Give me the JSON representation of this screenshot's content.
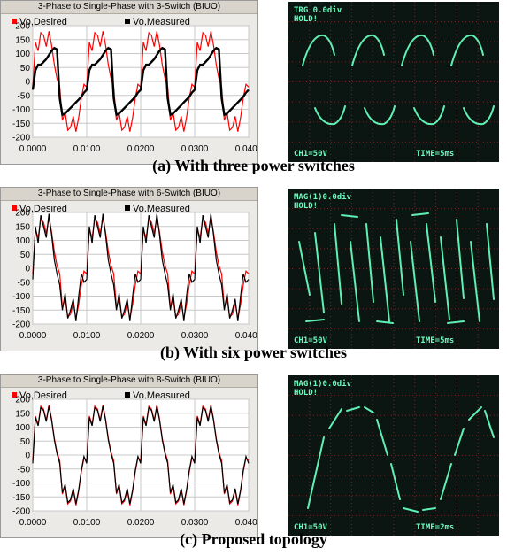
{
  "panels": [
    {
      "sim_title": "3-Phase to Single-Phase with 3-Switch (BIUO)",
      "legend": [
        "Vo,Desired",
        "Vo,Measured"
      ],
      "scope_top_text": "TRG 0.0div",
      "scope_hold": "HOLD!",
      "scope_ch": "CH1=50V",
      "scope_time": "TIME=5ms",
      "caption": "(a) With three power switches"
    },
    {
      "sim_title": "3-Phase to Single-Phase with 6-Switch (BIUO)",
      "legend": [
        "Vo,Desired",
        "Vo,Measured"
      ],
      "scope_top_text": "MAG(1)0.0div",
      "scope_hold": "HOLD!",
      "scope_ch": "CH1=50V",
      "scope_time": "TIME=5ms",
      "caption": "(b) With six power switches"
    },
    {
      "sim_title": "3-Phase to Single-Phase with 8-Switch (BIUO)",
      "legend": [
        "Vo,Desired",
        "Vo,Measured"
      ],
      "scope_top_text": "MAG(1)0.0div",
      "scope_hold": "HOLD!",
      "scope_ch": "CH1=50V",
      "scope_time": "TIME=2ms",
      "caption": "(c) Proposed topology"
    }
  ],
  "colors": {
    "desired": "#ff0000",
    "measured": "#000000",
    "scope_trace": "#5ff0b4",
    "scope_text": "#6dfabf",
    "scope_grid": "#6a2a2a"
  },
  "chart_data": [
    {
      "type": "line",
      "title": "3-Phase to Single-Phase with 3-Switch (BIUO)",
      "xlim": [
        0,
        0.04
      ],
      "ylim": [
        -200,
        200
      ],
      "xticks": [
        "0.0000",
        "0.0100",
        "0.0200",
        "0.0300",
        "0.0400"
      ],
      "yticks": [
        200,
        150,
        100,
        50,
        0,
        -50,
        -100,
        -150,
        -200
      ],
      "period": 0.01,
      "series": [
        {
          "name": "Vo,Desired",
          "color": "#ff0000",
          "x": [
            0,
            0.0005,
            0.001,
            0.0015,
            0.002,
            0.0025,
            0.003,
            0.0035,
            0.004,
            0.0045,
            0.005,
            0.0055,
            0.006,
            0.0065,
            0.007,
            0.0075,
            0.008,
            0.0085,
            0.009,
            0.0095
          ],
          "y": [
            -20,
            140,
            110,
            175,
            165,
            125,
            180,
            130,
            60,
            10,
            -20,
            -140,
            -110,
            -175,
            -165,
            -125,
            -180,
            -130,
            -60,
            -10
          ]
        },
        {
          "name": "Vo,Measured",
          "color": "#000000",
          "x": [
            0,
            0.0005,
            0.001,
            0.0015,
            0.002,
            0.0025,
            0.003,
            0.0035,
            0.004,
            0.0045,
            0.005,
            0.0055,
            0.006,
            0.0065,
            0.007,
            0.0075,
            0.008,
            0.0085,
            0.009,
            0.0095
          ],
          "y": [
            -30,
            40,
            60,
            60,
            70,
            80,
            95,
            110,
            120,
            115,
            -60,
            -120,
            -115,
            -105,
            -95,
            -85,
            -75,
            -65,
            -55,
            -40
          ]
        }
      ]
    },
    {
      "type": "line",
      "title": "3-Phase to Single-Phase with 6-Switch (BIUO)",
      "xlim": [
        0,
        0.04
      ],
      "ylim": [
        -200,
        200
      ],
      "xticks": [
        "0.0000",
        "0.0100",
        "0.0200",
        "0.0300",
        "0.0400"
      ],
      "yticks": [
        200,
        150,
        100,
        50,
        0,
        -50,
        -100,
        -150,
        -200
      ],
      "period": 0.01,
      "series": [
        {
          "name": "Vo,Desired",
          "color": "#ff0000",
          "x": [
            0,
            0.0005,
            0.001,
            0.0015,
            0.002,
            0.0025,
            0.003,
            0.0035,
            0.004,
            0.0045,
            0.005,
            0.0055,
            0.006,
            0.0065,
            0.007,
            0.0075,
            0.008,
            0.0085,
            0.009,
            0.0095
          ],
          "y": [
            -20,
            140,
            110,
            175,
            165,
            125,
            180,
            130,
            60,
            10,
            -20,
            -140,
            -110,
            -175,
            -165,
            -125,
            -180,
            -130,
            -60,
            -10
          ]
        },
        {
          "name": "Vo,Measured",
          "color": "#000000",
          "x": [
            0,
            0.0005,
            0.001,
            0.0015,
            0.002,
            0.0025,
            0.003,
            0.0035,
            0.004,
            0.0045,
            0.005,
            0.0055,
            0.006,
            0.0065,
            0.007,
            0.0075,
            0.008,
            0.0085,
            0.009,
            0.0095
          ],
          "y": [
            -40,
            150,
            90,
            190,
            150,
            110,
            195,
            120,
            30,
            -20,
            -60,
            -150,
            -90,
            -180,
            -150,
            -110,
            -190,
            -100,
            -20,
            -50
          ]
        }
      ]
    },
    {
      "type": "line",
      "title": "3-Phase to Single-Phase with 8-Switch (BIUO)",
      "xlim": [
        0,
        0.04
      ],
      "ylim": [
        -200,
        200
      ],
      "xticks": [
        "0.0000",
        "0.0100",
        "0.0200",
        "0.0300",
        "0.0400"
      ],
      "yticks": [
        200,
        150,
        100,
        50,
        0,
        -50,
        -100,
        -150,
        -200
      ],
      "period": 0.01,
      "series": [
        {
          "name": "Vo,Desired",
          "color": "#ff0000",
          "x": [
            0,
            0.0005,
            0.001,
            0.0015,
            0.002,
            0.0025,
            0.003,
            0.0035,
            0.004,
            0.0045,
            0.005,
            0.0055,
            0.006,
            0.0065,
            0.007,
            0.0075,
            0.008,
            0.0085,
            0.009,
            0.0095
          ],
          "y": [
            -20,
            140,
            110,
            175,
            165,
            125,
            180,
            130,
            60,
            10,
            -20,
            -140,
            -110,
            -175,
            -165,
            -125,
            -180,
            -130,
            -60,
            -10
          ]
        },
        {
          "name": "Vo,Measured",
          "color": "#000000",
          "x": [
            0,
            0.0005,
            0.001,
            0.0015,
            0.002,
            0.0025,
            0.003,
            0.0035,
            0.004,
            0.0045,
            0.005,
            0.0055,
            0.006,
            0.0065,
            0.007,
            0.0075,
            0.008,
            0.0085,
            0.009,
            0.0095
          ],
          "y": [
            -30,
            135,
            105,
            170,
            160,
            120,
            175,
            125,
            55,
            5,
            -30,
            -135,
            -105,
            -170,
            -160,
            -120,
            -175,
            -125,
            -55,
            -5
          ]
        }
      ]
    }
  ]
}
